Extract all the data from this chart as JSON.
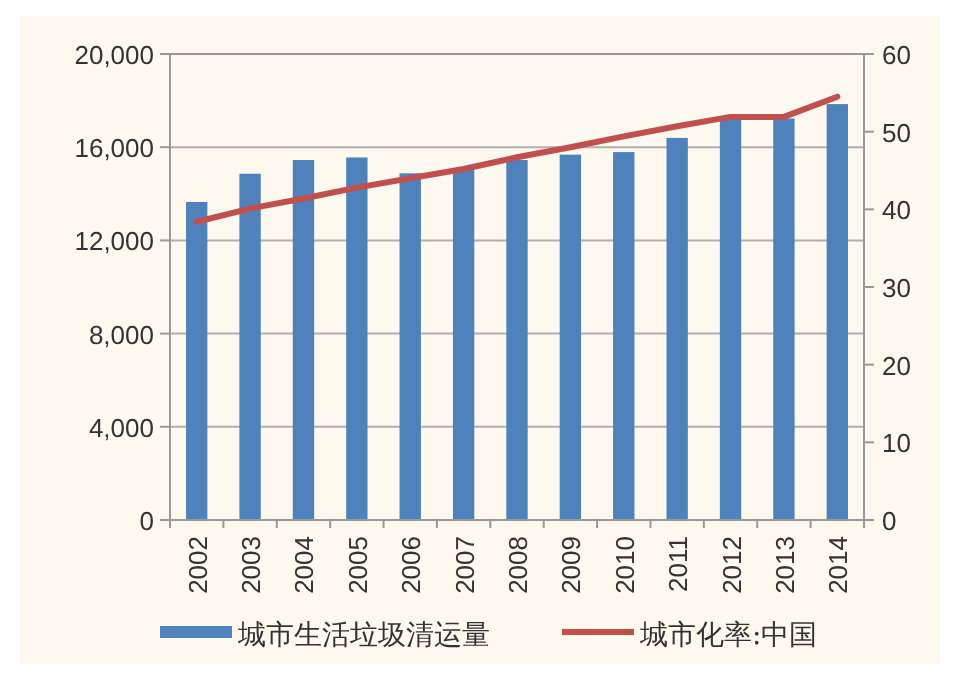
{
  "chart_data": {
    "type": "bar",
    "categories": [
      "2002",
      "2003",
      "2004",
      "2005",
      "2006",
      "2007",
      "2008",
      "2009",
      "2010",
      "2011",
      "2012",
      "2013",
      "2014"
    ],
    "series": [
      {
        "name": "城市生活垃圾清运量",
        "color": "#4f81bd",
        "values": [
          13650,
          14860,
          15450,
          15560,
          14880,
          15100,
          15450,
          15680,
          15790,
          16400,
          17170,
          17230,
          17850
        ]
      },
      {
        "name": "城市化率:中国",
        "type": "line",
        "axis": "y2",
        "color": "#c0504d",
        "values": [
          38.4,
          40.1,
          41.4,
          42.8,
          44.0,
          45.2,
          46.7,
          48.0,
          49.4,
          50.7,
          51.9,
          51.9,
          54.5
        ]
      }
    ],
    "ylim": [
      0,
      20000
    ],
    "yticks": [
      {
        "value": 0,
        "label": "0"
      },
      {
        "value": 4000,
        "label": "4,000"
      },
      {
        "value": 8000,
        "label": "8,000"
      },
      {
        "value": 12000,
        "label": "12,000"
      },
      {
        "value": 16000,
        "label": "16,000"
      },
      {
        "value": 20000,
        "label": "20,000"
      }
    ],
    "y2lim": [
      0,
      60
    ],
    "y2ticks": [
      0,
      10,
      20,
      30,
      40,
      50,
      60
    ],
    "grid": "y",
    "legend": "bottom"
  }
}
